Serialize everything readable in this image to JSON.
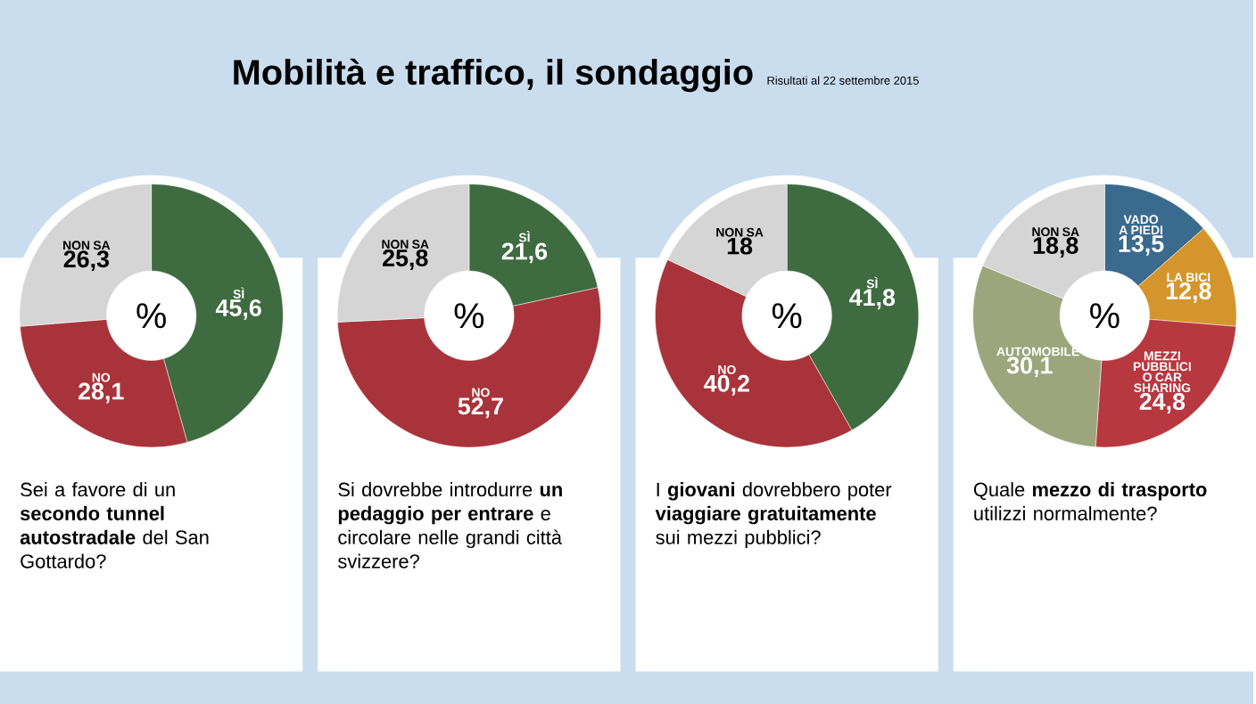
{
  "chart_data": [
    {
      "type": "other",
      "title": "Mobilità e traffico, il sondaggio",
      "subtitle": "Risultati al 22 settembre 2015"
    },
    {
      "type": "donut",
      "title": "Sei a favore di un **secondo tunnel autostradale** del San Gottardo?",
      "categories": [
        "SÌ",
        "NO",
        "NON SA"
      ],
      "values": [
        45.6,
        28.1,
        26.3
      ],
      "value_labels": [
        "45,6",
        "28,1",
        "26,3"
      ],
      "colors": [
        "#3f6b40",
        "#a8333a",
        "#d5d5d5"
      ],
      "annotations": [
        "%"
      ]
    },
    {
      "type": "donut",
      "title": "Si dovrebbe introdurre **un pedaggio per entrare** e circolare nelle grandi città svizzere?",
      "categories": [
        "SÌ",
        "NO",
        "NON SA"
      ],
      "values": [
        21.6,
        52.7,
        25.8
      ],
      "value_labels": [
        "21,6",
        "52,7",
        "25,8"
      ],
      "colors": [
        "#3f6b40",
        "#a8333a",
        "#d5d5d5"
      ],
      "annotations": [
        "%"
      ]
    },
    {
      "type": "donut",
      "title": "I **giovani** dovrebbero poter **viaggiare gratuitamente** sui mezzi pubblici?",
      "categories": [
        "SÌ",
        "NO",
        "NON SA"
      ],
      "values": [
        41.8,
        40.2,
        18
      ],
      "value_labels": [
        "41,8",
        "40,2",
        "18"
      ],
      "colors": [
        "#3f6b40",
        "#a8333a",
        "#d5d5d5"
      ],
      "annotations": [
        "%"
      ]
    },
    {
      "type": "donut",
      "title": "Quale **mezzo di trasporto** utilizzi normalmente?",
      "categories": [
        "VADO A PIEDI",
        "LA BICI",
        "MEZZI PUBBLICI O CAR SHARING",
        "AUTOMOBILE",
        "NON SA"
      ],
      "values": [
        13.5,
        12.8,
        24.8,
        30.1,
        18.8
      ],
      "value_labels": [
        "13,5",
        "12,8",
        "24,8",
        "30,1",
        "18,8"
      ],
      "colors": [
        "#3a6a8e",
        "#d4962c",
        "#b8383f",
        "#9ca57c",
        "#d5d5d5"
      ],
      "annotations": [
        "%"
      ]
    }
  ]
}
